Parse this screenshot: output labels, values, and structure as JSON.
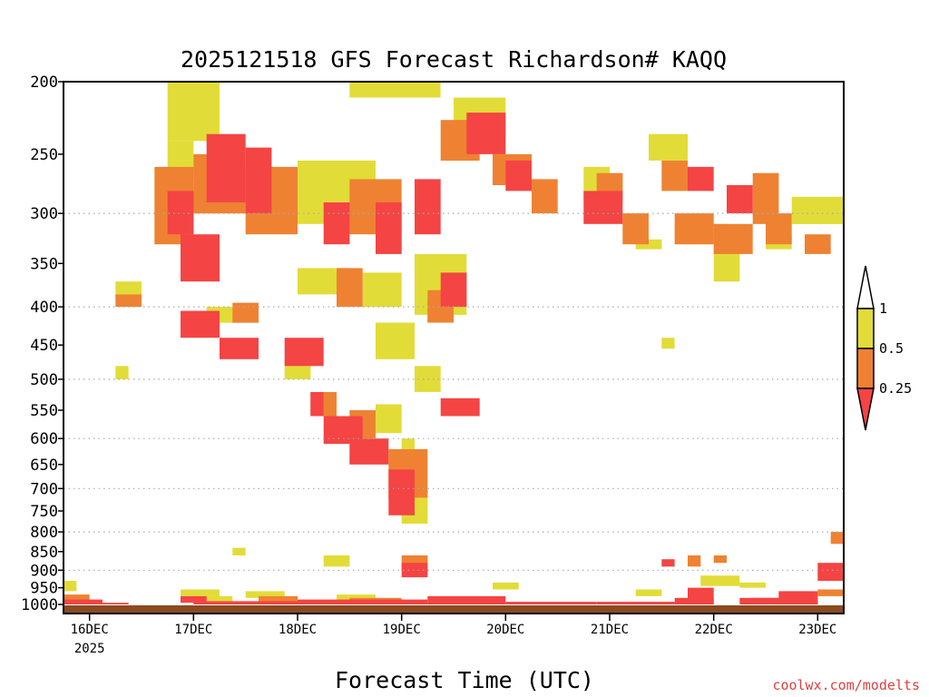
{
  "chart_data": {
    "type": "heatmap",
    "title": "2025121518 GFS Forecast Richardson# KAQQ",
    "xlabel": "Forecast Time (UTC)",
    "ylabel": "",
    "credit": "coolwx.com/modelts",
    "y_scale": "log",
    "y_range": [
      1000,
      200
    ],
    "y_unit": "hPa",
    "yticks": [
      200,
      250,
      300,
      350,
      400,
      450,
      500,
      550,
      600,
      650,
      700,
      750,
      800,
      850,
      900,
      950,
      1000
    ],
    "grid_levels": [
      300,
      400,
      500,
      600,
      700,
      800,
      900
    ],
    "x_range": [
      "2025-12-15T18",
      "2025-12-23T06"
    ],
    "xticks": [
      {
        "time": "2025-12-16T00",
        "label": "16DEC",
        "sublabel": "2025"
      },
      {
        "time": "2025-12-17T00",
        "label": "17DEC",
        "sublabel": ""
      },
      {
        "time": "2025-12-18T00",
        "label": "18DEC",
        "sublabel": ""
      },
      {
        "time": "2025-12-19T00",
        "label": "19DEC",
        "sublabel": ""
      },
      {
        "time": "2025-12-20T00",
        "label": "20DEC",
        "sublabel": ""
      },
      {
        "time": "2025-12-21T00",
        "label": "21DEC",
        "sublabel": ""
      },
      {
        "time": "2025-12-22T00",
        "label": "22DEC",
        "sublabel": ""
      },
      {
        "time": "2025-12-23T00",
        "label": "23DEC",
        "sublabel": ""
      }
    ],
    "legend": {
      "placement": "right",
      "levels": [
        {
          "label": "1",
          "color": "#ffffff"
        },
        {
          "label": "0.5",
          "color": "#e2dc38"
        },
        {
          "label": "0.25",
          "color": "#ee8232"
        },
        {
          "label": "",
          "color": "#f44444"
        }
      ],
      "boundaries": [
        "1",
        "0.5",
        "0.25"
      ]
    },
    "colors": {
      "low": "#f44444",
      "mid": "#ee8232",
      "high": "#e2dc38",
      "ground": "#8a4a22",
      "grid": "#aaaaaa"
    },
    "series": [
      {
        "category": "high",
        "cells": [
          [
            "2025-12-16T18",
            "2025-12-17T06",
            200,
            240
          ],
          [
            "2025-12-16T18",
            "2025-12-17T00",
            240,
            270
          ],
          [
            "2025-12-18T00",
            "2025-12-18T18",
            255,
            310
          ],
          [
            "2025-12-18T12",
            "2025-12-19T09",
            200,
            210
          ],
          [
            "2025-12-19T12",
            "2025-12-20T00",
            210,
            240
          ],
          [
            "2025-12-20T18",
            "2025-12-21T00",
            260,
            290
          ],
          [
            "2025-12-21T09",
            "2025-12-21T18",
            235,
            255
          ],
          [
            "2025-12-21T15",
            "2025-12-22T03",
            310,
            330
          ],
          [
            "2025-12-22T18",
            "2025-12-23T06",
            285,
            310
          ],
          [
            "2025-12-22T12",
            "2025-12-22T18",
            320,
            335
          ],
          [
            "2025-12-21T06",
            "2025-12-21T12",
            325,
            335
          ],
          [
            "2025-12-22T00",
            "2025-12-22T06",
            335,
            370
          ],
          [
            "2025-12-16T06",
            "2025-12-16T12",
            370,
            390
          ],
          [
            "2025-12-17T03",
            "2025-12-17T12",
            400,
            420
          ],
          [
            "2025-12-18T00",
            "2025-12-18T12",
            355,
            385
          ],
          [
            "2025-12-18T15",
            "2025-12-19T00",
            360,
            400
          ],
          [
            "2025-12-19T03",
            "2025-12-19T15",
            340,
            410
          ],
          [
            "2025-12-16T06",
            "2025-12-16T09",
            480,
            500
          ],
          [
            "2025-12-17T21",
            "2025-12-18T03",
            470,
            500
          ],
          [
            "2025-12-18T18",
            "2025-12-19T03",
            420,
            470
          ],
          [
            "2025-12-19T03",
            "2025-12-19T09",
            480,
            520
          ],
          [
            "2025-12-21T12",
            "2025-12-21T15",
            440,
            455
          ],
          [
            "2025-12-17T09",
            "2025-12-17T12",
            840,
            860
          ],
          [
            "2025-12-18T06",
            "2025-12-18T12",
            860,
            890
          ],
          [
            "2025-12-18T18",
            "2025-12-19T00",
            540,
            590
          ],
          [
            "2025-12-19T00",
            "2025-12-19T03",
            600,
            660
          ],
          [
            "2025-12-19T00",
            "2025-12-19T06",
            700,
            780
          ],
          [
            "2025-12-21T21",
            "2025-12-22T06",
            915,
            945
          ],
          [
            "2025-12-22T06",
            "2025-12-22T12",
            935,
            950
          ],
          [
            "2025-12-16T21",
            "2025-12-17T06",
            955,
            975
          ],
          [
            "2025-12-17T00",
            "2025-12-17T09",
            975,
            990
          ],
          [
            "2025-12-17T12",
            "2025-12-17T21",
            960,
            980
          ],
          [
            "2025-12-18T09",
            "2025-12-18T18",
            970,
            990
          ],
          [
            "2025-12-19T21",
            "2025-12-20T03",
            935,
            955
          ],
          [
            "2025-12-21T06",
            "2025-12-21T12",
            955,
            975
          ],
          [
            "2025-12-15T18",
            "2025-12-15T21",
            930,
            960
          ]
        ]
      },
      {
        "category": "mid",
        "cells": [
          [
            "2025-12-16T15",
            "2025-12-17T00",
            260,
            330
          ],
          [
            "2025-12-17T00",
            "2025-12-17T12",
            250,
            300
          ],
          [
            "2025-12-17T12",
            "2025-12-18T00",
            260,
            320
          ],
          [
            "2025-12-18T12",
            "2025-12-19T00",
            270,
            320
          ],
          [
            "2025-12-19T09",
            "2025-12-19T18",
            225,
            255
          ],
          [
            "2025-12-19T21",
            "2025-12-20T06",
            250,
            275
          ],
          [
            "2025-12-20T06",
            "2025-12-20T12",
            270,
            300
          ],
          [
            "2025-12-20T21",
            "2025-12-21T03",
            265,
            290
          ],
          [
            "2025-12-21T12",
            "2025-12-21T18",
            255,
            280
          ],
          [
            "2025-12-21T15",
            "2025-12-22T00",
            300,
            330
          ],
          [
            "2025-12-22T00",
            "2025-12-22T09",
            310,
            340
          ],
          [
            "2025-12-22T09",
            "2025-12-22T15",
            265,
            310
          ],
          [
            "2025-12-22T12",
            "2025-12-22T18",
            300,
            330
          ],
          [
            "2025-12-21T03",
            "2025-12-21T09",
            300,
            330
          ],
          [
            "2025-12-22T21",
            "2025-12-23T03",
            320,
            340
          ],
          [
            "2025-12-16T06",
            "2025-12-16T12",
            385,
            400
          ],
          [
            "2025-12-17T09",
            "2025-12-17T15",
            395,
            420
          ],
          [
            "2025-12-18T09",
            "2025-12-18T15",
            355,
            400
          ],
          [
            "2025-12-19T06",
            "2025-12-19T12",
            390,
            420
          ],
          [
            "2025-12-18T03",
            "2025-12-18T09",
            520,
            560
          ],
          [
            "2025-12-18T12",
            "2025-12-18T18",
            550,
            600
          ],
          [
            "2025-12-18T21",
            "2025-12-19T06",
            620,
            720
          ],
          [
            "2025-12-19T06",
            "2025-12-19T12",
            380,
            420
          ],
          [
            "2025-12-19T00",
            "2025-12-19T06",
            860,
            900
          ],
          [
            "2025-12-21T18",
            "2025-12-21T21",
            860,
            890
          ],
          [
            "2025-12-22T00",
            "2025-12-22T03",
            860,
            880
          ],
          [
            "2025-12-23T03",
            "2025-12-23T06",
            800,
            830
          ],
          [
            "2025-12-15T18",
            "2025-12-16T00",
            970,
            990
          ],
          [
            "2025-12-17T15",
            "2025-12-18T00",
            975,
            995
          ],
          [
            "2025-12-18T12",
            "2025-12-19T00",
            980,
            995
          ],
          [
            "2025-12-23T00",
            "2025-12-23T06",
            955,
            975
          ]
        ]
      },
      {
        "category": "low",
        "cells": [
          [
            "2025-12-16T18",
            "2025-12-17T00",
            280,
            320
          ],
          [
            "2025-12-16T21",
            "2025-12-17T06",
            320,
            370
          ],
          [
            "2025-12-17T03",
            "2025-12-17T12",
            235,
            290
          ],
          [
            "2025-12-17T12",
            "2025-12-17T18",
            245,
            300
          ],
          [
            "2025-12-18T06",
            "2025-12-18T12",
            290,
            330
          ],
          [
            "2025-12-18T18",
            "2025-12-19T00",
            290,
            340
          ],
          [
            "2025-12-19T03",
            "2025-12-19T09",
            270,
            320
          ],
          [
            "2025-12-19T15",
            "2025-12-20T00",
            220,
            250
          ],
          [
            "2025-12-20T00",
            "2025-12-20T06",
            255,
            280
          ],
          [
            "2025-12-20T18",
            "2025-12-21T03",
            280,
            310
          ],
          [
            "2025-12-21T18",
            "2025-12-22T00",
            260,
            280
          ],
          [
            "2025-12-22T03",
            "2025-12-22T09",
            275,
            300
          ],
          [
            "2025-12-16T21",
            "2025-12-17T06",
            405,
            440
          ],
          [
            "2025-12-17T06",
            "2025-12-17T15",
            440,
            470
          ],
          [
            "2025-12-17T21",
            "2025-12-18T06",
            440,
            480
          ],
          [
            "2025-12-18T03",
            "2025-12-18T06",
            520,
            560
          ],
          [
            "2025-12-18T06",
            "2025-12-18T15",
            560,
            610
          ],
          [
            "2025-12-18T12",
            "2025-12-18T21",
            600,
            650
          ],
          [
            "2025-12-18T21",
            "2025-12-19T03",
            660,
            760
          ],
          [
            "2025-12-19T00",
            "2025-12-19T06",
            880,
            920
          ],
          [
            "2025-12-19T09",
            "2025-12-19T18",
            530,
            560
          ],
          [
            "2025-12-19T09",
            "2025-12-19T15",
            360,
            400
          ],
          [
            "2025-12-21T12",
            "2025-12-21T15",
            870,
            890
          ],
          [
            "2025-12-21T18",
            "2025-12-22T00",
            950,
            1000
          ],
          [
            "2025-12-22T06",
            "2025-12-22T15",
            980,
            1000
          ],
          [
            "2025-12-22T15",
            "2025-12-23T00",
            960,
            1000
          ],
          [
            "2025-12-23T00",
            "2025-12-23T06",
            880,
            930
          ],
          [
            "2025-12-15T18",
            "2025-12-16T03",
            985,
            1000
          ],
          [
            "2025-12-16T03",
            "2025-12-16T09",
            995,
            1000
          ],
          [
            "2025-12-16T21",
            "2025-12-17T03",
            975,
            995
          ],
          [
            "2025-12-17T00",
            "2025-12-18T00",
            990,
            1000
          ],
          [
            "2025-12-18T00",
            "2025-12-19T06",
            985,
            1000
          ],
          [
            "2025-12-19T06",
            "2025-12-20T00",
            975,
            1000
          ],
          [
            "2025-12-20T00",
            "2025-12-20T21",
            992,
            1000
          ],
          [
            "2025-12-20T21",
            "2025-12-21T15",
            992,
            1000
          ],
          [
            "2025-12-21T15",
            "2025-12-22T00",
            980,
            1000
          ],
          [
            "2025-12-22T09",
            "2025-12-23T00",
            980,
            1000
          ]
        ]
      }
    ]
  }
}
